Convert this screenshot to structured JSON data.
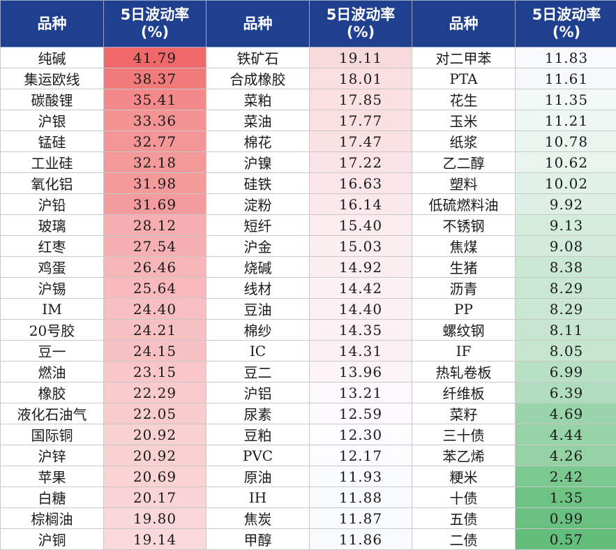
{
  "headers": [
    "品种",
    "5日波动率\n(%)",
    "品种",
    "5日波动率\n(%)",
    "品种",
    "5日波动率\n(%)"
  ],
  "colors": {
    "header_bg": "#1f3f8f",
    "high_red": "#f0696a",
    "mid_white": "#fcfcff",
    "low_green": "#63be7b"
  },
  "scale": {
    "min": 0.57,
    "mid": 12.17,
    "max": 41.79
  },
  "rows": [
    [
      [
        "纯碱",
        "41.79"
      ],
      [
        "铁矿石",
        "19.11"
      ],
      [
        "对二甲苯",
        "11.83"
      ]
    ],
    [
      [
        "集运欧线",
        "38.37"
      ],
      [
        "合成橡胶",
        "18.01"
      ],
      [
        "PTA",
        "11.61"
      ]
    ],
    [
      [
        "碳酸锂",
        "35.41"
      ],
      [
        "菜粕",
        "17.85"
      ],
      [
        "花生",
        "11.35"
      ]
    ],
    [
      [
        "沪银",
        "33.36"
      ],
      [
        "菜油",
        "17.77"
      ],
      [
        "玉米",
        "11.21"
      ]
    ],
    [
      [
        "锰硅",
        "32.77"
      ],
      [
        "棉花",
        "17.47"
      ],
      [
        "纸浆",
        "10.78"
      ]
    ],
    [
      [
        "工业硅",
        "32.18"
      ],
      [
        "沪镍",
        "17.22"
      ],
      [
        "乙二醇",
        "10.62"
      ]
    ],
    [
      [
        "氧化铝",
        "31.98"
      ],
      [
        "硅铁",
        "16.63"
      ],
      [
        "塑料",
        "10.02"
      ]
    ],
    [
      [
        "沪铅",
        "31.69"
      ],
      [
        "淀粉",
        "16.14"
      ],
      [
        "低硫燃料油",
        "9.92"
      ]
    ],
    [
      [
        "玻璃",
        "28.12"
      ],
      [
        "短纤",
        "15.40"
      ],
      [
        "不锈钢",
        "9.13"
      ]
    ],
    [
      [
        "红枣",
        "27.54"
      ],
      [
        "沪金",
        "15.03"
      ],
      [
        "焦煤",
        "9.08"
      ]
    ],
    [
      [
        "鸡蛋",
        "26.46"
      ],
      [
        "烧碱",
        "14.92"
      ],
      [
        "生猪",
        "8.38"
      ]
    ],
    [
      [
        "沪锡",
        "25.64"
      ],
      [
        "线材",
        "14.42"
      ],
      [
        "沥青",
        "8.29"
      ]
    ],
    [
      [
        "IM",
        "24.40"
      ],
      [
        "豆油",
        "14.40"
      ],
      [
        "PP",
        "8.29"
      ]
    ],
    [
      [
        "20号胶",
        "24.21"
      ],
      [
        "棉纱",
        "14.35"
      ],
      [
        "螺纹钢",
        "8.11"
      ]
    ],
    [
      [
        "豆一",
        "24.15"
      ],
      [
        "IC",
        "14.31"
      ],
      [
        "IF",
        "8.05"
      ]
    ],
    [
      [
        "燃油",
        "23.15"
      ],
      [
        "豆二",
        "13.96"
      ],
      [
        "热轧卷板",
        "6.99"
      ]
    ],
    [
      [
        "橡胶",
        "22.29"
      ],
      [
        "沪铝",
        "13.21"
      ],
      [
        "纤维板",
        "6.39"
      ]
    ],
    [
      [
        "液化石油气",
        "22.05"
      ],
      [
        "尿素",
        "12.59"
      ],
      [
        "菜籽",
        "4.69"
      ]
    ],
    [
      [
        "国际铜",
        "20.92"
      ],
      [
        "豆粕",
        "12.30"
      ],
      [
        "三十债",
        "4.44"
      ]
    ],
    [
      [
        "沪锌",
        "20.92"
      ],
      [
        "PVC",
        "12.17"
      ],
      [
        "苯乙烯",
        "4.26"
      ]
    ],
    [
      [
        "苹果",
        "20.69"
      ],
      [
        "原油",
        "11.93"
      ],
      [
        "粳米",
        "2.42"
      ]
    ],
    [
      [
        "白糖",
        "20.17"
      ],
      [
        "IH",
        "11.88"
      ],
      [
        "十债",
        "1.35"
      ]
    ],
    [
      [
        "棕榈油",
        "19.80"
      ],
      [
        "焦炭",
        "11.87"
      ],
      [
        "五债",
        "0.99"
      ]
    ],
    [
      [
        "沪铜",
        "19.14"
      ],
      [
        "甲醇",
        "11.86"
      ],
      [
        "二债",
        "0.57"
      ]
    ]
  ]
}
